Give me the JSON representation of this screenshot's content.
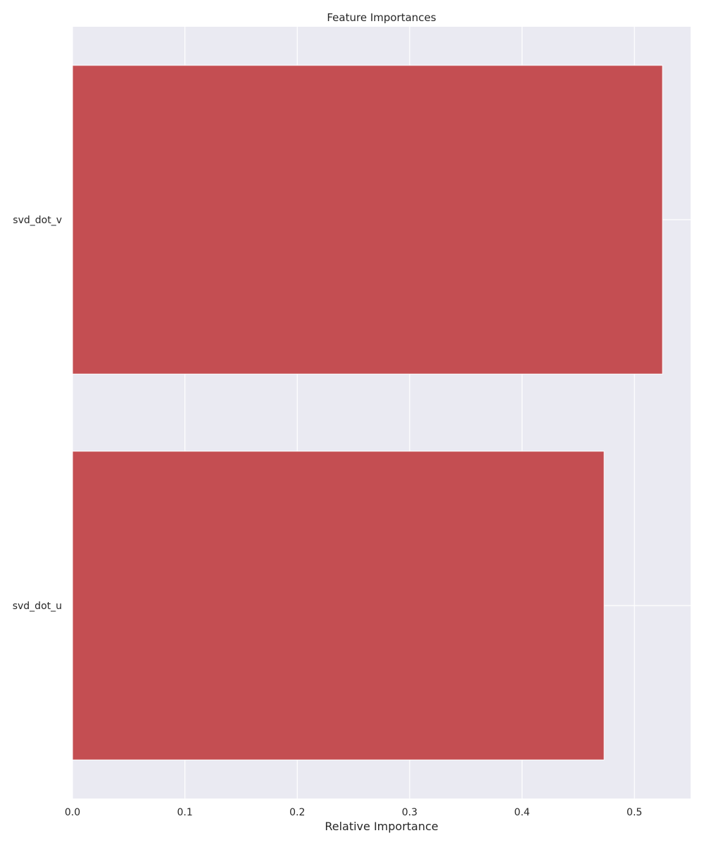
{
  "chart_data": {
    "type": "bar",
    "orientation": "horizontal",
    "title": "Feature Importances",
    "xlabel": "Relative Importance",
    "ylabel": "",
    "categories": [
      "svd_dot_v",
      "svd_dot_u"
    ],
    "values": [
      0.525,
      0.473
    ],
    "xlim": [
      0,
      0.55
    ],
    "xticks": [
      "0.0",
      "0.1",
      "0.2",
      "0.3",
      "0.4",
      "0.5"
    ],
    "grid": true,
    "colors": {
      "bar": "#c44e52",
      "plot_background": "#eaeaf2",
      "grid": "#ffffff"
    }
  }
}
